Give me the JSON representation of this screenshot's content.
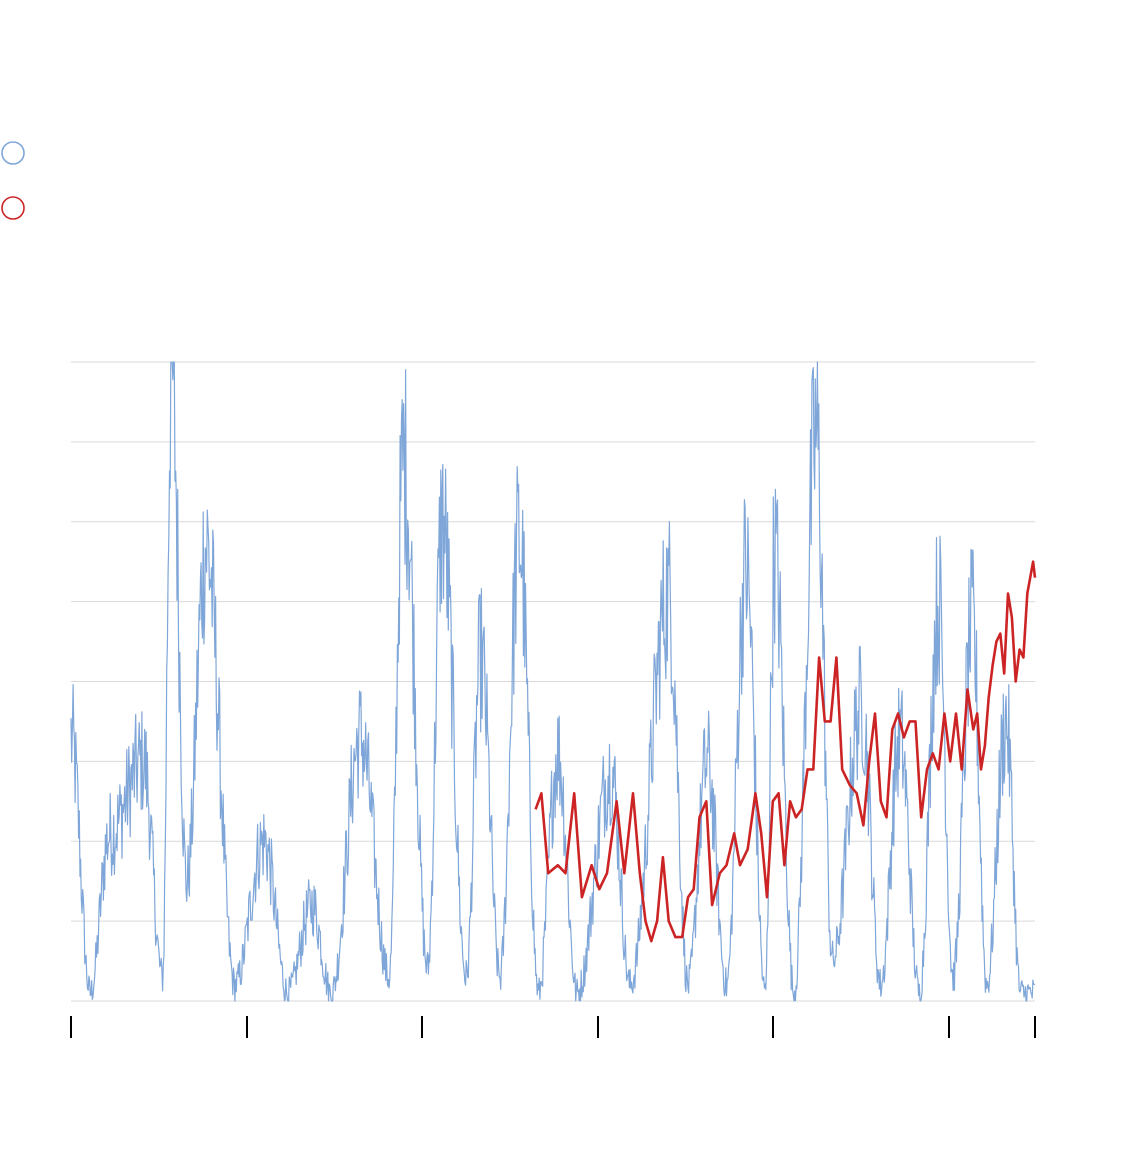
{
  "colors": {
    "background": "#ffffff",
    "grid": "#d9d9d9",
    "series_blue": "#7fa6d8",
    "series_red": "#cc2424",
    "tick": "#000000"
  },
  "chart_data": {
    "type": "line",
    "title": "",
    "xlabel": "",
    "ylabel": "",
    "grid": true,
    "legend_placement": "top-left",
    "gridline_count": 9,
    "x_tick_count": 7,
    "x_range": [
      0,
      1
    ],
    "y_range": [
      0,
      8
    ],
    "series": [
      {
        "key": "blue",
        "color": "#7fa6d8",
        "description_of_shape": "dense seasonal oscillation across the full x range",
        "peaks": [
          {
            "x": 0.0,
            "y": 3.3
          },
          {
            "x": 0.02,
            "y": 0.1
          },
          {
            "x": 0.04,
            "y": 2.1
          },
          {
            "x": 0.075,
            "y": 3.0
          },
          {
            "x": 0.095,
            "y": 0.3
          },
          {
            "x": 0.104,
            "y": 7.9
          },
          {
            "x": 0.12,
            "y": 1.5
          },
          {
            "x": 0.14,
            "y": 5.7
          },
          {
            "x": 0.17,
            "y": 0.2
          },
          {
            "x": 0.2,
            "y": 2.0
          },
          {
            "x": 0.225,
            "y": 0.1
          },
          {
            "x": 0.25,
            "y": 1.2
          },
          {
            "x": 0.27,
            "y": 0.1
          },
          {
            "x": 0.3,
            "y": 3.3
          },
          {
            "x": 0.33,
            "y": 0.3
          },
          {
            "x": 0.345,
            "y": 6.8
          },
          {
            "x": 0.37,
            "y": 0.4
          },
          {
            "x": 0.385,
            "y": 6.0
          },
          {
            "x": 0.41,
            "y": 0.3
          },
          {
            "x": 0.425,
            "y": 4.3
          },
          {
            "x": 0.445,
            "y": 0.3
          },
          {
            "x": 0.465,
            "y": 5.8
          },
          {
            "x": 0.485,
            "y": 0.1
          },
          {
            "x": 0.505,
            "y": 3.1
          },
          {
            "x": 0.525,
            "y": 0.1
          },
          {
            "x": 0.56,
            "y": 2.9
          },
          {
            "x": 0.58,
            "y": 0.2
          },
          {
            "x": 0.62,
            "y": 5.1
          },
          {
            "x": 0.64,
            "y": 0.2
          },
          {
            "x": 0.66,
            "y": 3.0
          },
          {
            "x": 0.68,
            "y": 0.2
          },
          {
            "x": 0.7,
            "y": 5.4
          },
          {
            "x": 0.72,
            "y": 0.1
          },
          {
            "x": 0.73,
            "y": 5.6
          },
          {
            "x": 0.75,
            "y": 0.1
          },
          {
            "x": 0.773,
            "y": 7.1
          },
          {
            "x": 0.79,
            "y": 0.5
          },
          {
            "x": 0.82,
            "y": 3.7
          },
          {
            "x": 0.84,
            "y": 0.2
          },
          {
            "x": 0.86,
            "y": 3.3
          },
          {
            "x": 0.88,
            "y": 0.1
          },
          {
            "x": 0.9,
            "y": 5.0
          },
          {
            "x": 0.915,
            "y": 0.3
          },
          {
            "x": 0.935,
            "y": 4.7
          },
          {
            "x": 0.95,
            "y": 0.2
          },
          {
            "x": 0.97,
            "y": 3.5
          },
          {
            "x": 0.985,
            "y": 0.1
          },
          {
            "x": 1.0,
            "y": 0.1
          }
        ]
      },
      {
        "key": "red",
        "color": "#cc2424",
        "points": [
          {
            "x": 0.482,
            "y": 2.4
          },
          {
            "x": 0.488,
            "y": 2.6
          },
          {
            "x": 0.495,
            "y": 1.6
          },
          {
            "x": 0.505,
            "y": 1.7
          },
          {
            "x": 0.513,
            "y": 1.6
          },
          {
            "x": 0.522,
            "y": 2.6
          },
          {
            "x": 0.53,
            "y": 1.3
          },
          {
            "x": 0.54,
            "y": 1.7
          },
          {
            "x": 0.548,
            "y": 1.4
          },
          {
            "x": 0.556,
            "y": 1.6
          },
          {
            "x": 0.566,
            "y": 2.5
          },
          {
            "x": 0.574,
            "y": 1.6
          },
          {
            "x": 0.583,
            "y": 2.6
          },
          {
            "x": 0.59,
            "y": 1.6
          },
          {
            "x": 0.596,
            "y": 1.0
          },
          {
            "x": 0.602,
            "y": 0.75
          },
          {
            "x": 0.608,
            "y": 1.0
          },
          {
            "x": 0.614,
            "y": 1.8
          },
          {
            "x": 0.62,
            "y": 1.0
          },
          {
            "x": 0.627,
            "y": 0.8
          },
          {
            "x": 0.634,
            "y": 0.8
          },
          {
            "x": 0.64,
            "y": 1.3
          },
          {
            "x": 0.646,
            "y": 1.4
          },
          {
            "x": 0.652,
            "y": 2.3
          },
          {
            "x": 0.659,
            "y": 2.5
          },
          {
            "x": 0.665,
            "y": 1.2
          },
          {
            "x": 0.673,
            "y": 1.6
          },
          {
            "x": 0.68,
            "y": 1.7
          },
          {
            "x": 0.688,
            "y": 2.1
          },
          {
            "x": 0.694,
            "y": 1.7
          },
          {
            "x": 0.702,
            "y": 1.9
          },
          {
            "x": 0.71,
            "y": 2.6
          },
          {
            "x": 0.716,
            "y": 2.1
          },
          {
            "x": 0.722,
            "y": 1.3
          },
          {
            "x": 0.728,
            "y": 2.5
          },
          {
            "x": 0.734,
            "y": 2.6
          },
          {
            "x": 0.74,
            "y": 1.7
          },
          {
            "x": 0.746,
            "y": 2.5
          },
          {
            "x": 0.752,
            "y": 2.3
          },
          {
            "x": 0.758,
            "y": 2.4
          },
          {
            "x": 0.764,
            "y": 2.9
          },
          {
            "x": 0.77,
            "y": 2.9
          },
          {
            "x": 0.776,
            "y": 4.3
          },
          {
            "x": 0.782,
            "y": 3.5
          },
          {
            "x": 0.788,
            "y": 3.5
          },
          {
            "x": 0.794,
            "y": 4.3
          },
          {
            "x": 0.8,
            "y": 2.9
          },
          {
            "x": 0.808,
            "y": 2.7
          },
          {
            "x": 0.815,
            "y": 2.6
          },
          {
            "x": 0.822,
            "y": 2.2
          },
          {
            "x": 0.828,
            "y": 3.0
          },
          {
            "x": 0.834,
            "y": 3.6
          },
          {
            "x": 0.84,
            "y": 2.5
          },
          {
            "x": 0.846,
            "y": 2.3
          },
          {
            "x": 0.852,
            "y": 3.4
          },
          {
            "x": 0.858,
            "y": 3.6
          },
          {
            "x": 0.864,
            "y": 3.3
          },
          {
            "x": 0.87,
            "y": 3.5
          },
          {
            "x": 0.876,
            "y": 3.5
          },
          {
            "x": 0.882,
            "y": 2.3
          },
          {
            "x": 0.888,
            "y": 2.9
          },
          {
            "x": 0.894,
            "y": 3.1
          },
          {
            "x": 0.9,
            "y": 2.9
          },
          {
            "x": 0.906,
            "y": 3.6
          },
          {
            "x": 0.912,
            "y": 3.0
          },
          {
            "x": 0.918,
            "y": 3.6
          },
          {
            "x": 0.924,
            "y": 2.9
          },
          {
            "x": 0.93,
            "y": 3.9
          },
          {
            "x": 0.936,
            "y": 3.4
          },
          {
            "x": 0.94,
            "y": 3.6
          },
          {
            "x": 0.944,
            "y": 2.9
          },
          {
            "x": 0.948,
            "y": 3.2
          },
          {
            "x": 0.952,
            "y": 3.8
          },
          {
            "x": 0.956,
            "y": 4.2
          },
          {
            "x": 0.96,
            "y": 4.5
          },
          {
            "x": 0.964,
            "y": 4.6
          },
          {
            "x": 0.968,
            "y": 4.1
          },
          {
            "x": 0.972,
            "y": 5.1
          },
          {
            "x": 0.976,
            "y": 4.8
          },
          {
            "x": 0.98,
            "y": 4.0
          },
          {
            "x": 0.984,
            "y": 4.4
          },
          {
            "x": 0.988,
            "y": 4.3
          },
          {
            "x": 0.992,
            "y": 5.1
          },
          {
            "x": 0.995,
            "y": 5.3
          },
          {
            "x": 0.998,
            "y": 5.5
          },
          {
            "x": 1.0,
            "y": 5.3
          }
        ]
      }
    ]
  }
}
